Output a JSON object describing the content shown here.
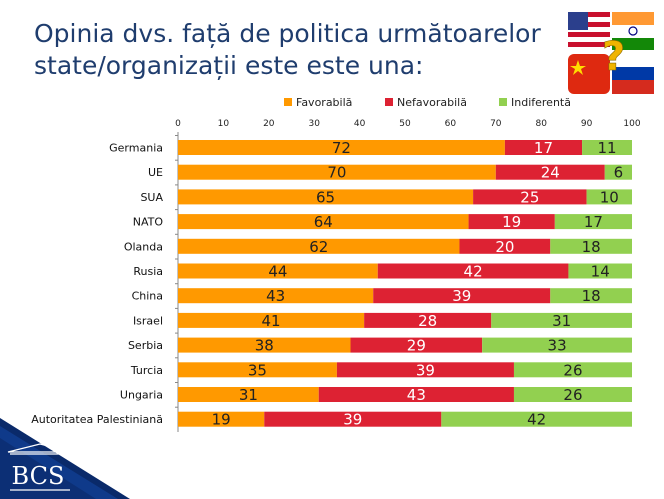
{
  "title": "Opinia dvs. față de politica următoarelor state/organizații este este una:",
  "logo_text": "BCS",
  "icons": {
    "flags": "flags-usa-india-china-russia-icon",
    "question": "question-mark-icon"
  },
  "chart_data": {
    "type": "bar",
    "orientation": "horizontal",
    "stacked": true,
    "xlim": [
      0,
      100
    ],
    "x_ticks": [
      0,
      10,
      20,
      30,
      40,
      50,
      60,
      70,
      80,
      90,
      100
    ],
    "legend_position": "top",
    "categories": [
      "Germania",
      "UE",
      "SUA",
      "NATO",
      "Olanda",
      "Rusia",
      "China",
      "Israel",
      "Serbia",
      "Turcia",
      "Ungaria",
      "Autoritatea Palestiniană"
    ],
    "series": [
      {
        "name": "Favorabilă",
        "color": "#ff9900",
        "label_color": "#222222",
        "values": [
          72,
          70,
          65,
          64,
          62,
          44,
          43,
          41,
          38,
          35,
          31,
          19
        ]
      },
      {
        "name": "Nefavorabilă",
        "color": "#dd2233",
        "label_color": "#ffffff",
        "values": [
          17,
          24,
          25,
          19,
          20,
          42,
          39,
          28,
          29,
          39,
          43,
          39
        ]
      },
      {
        "name": "Indiferentă",
        "color": "#92d050",
        "label_color": "#222222",
        "values": [
          11,
          6,
          10,
          17,
          18,
          14,
          18,
          31,
          33,
          26,
          26,
          42
        ]
      }
    ]
  }
}
